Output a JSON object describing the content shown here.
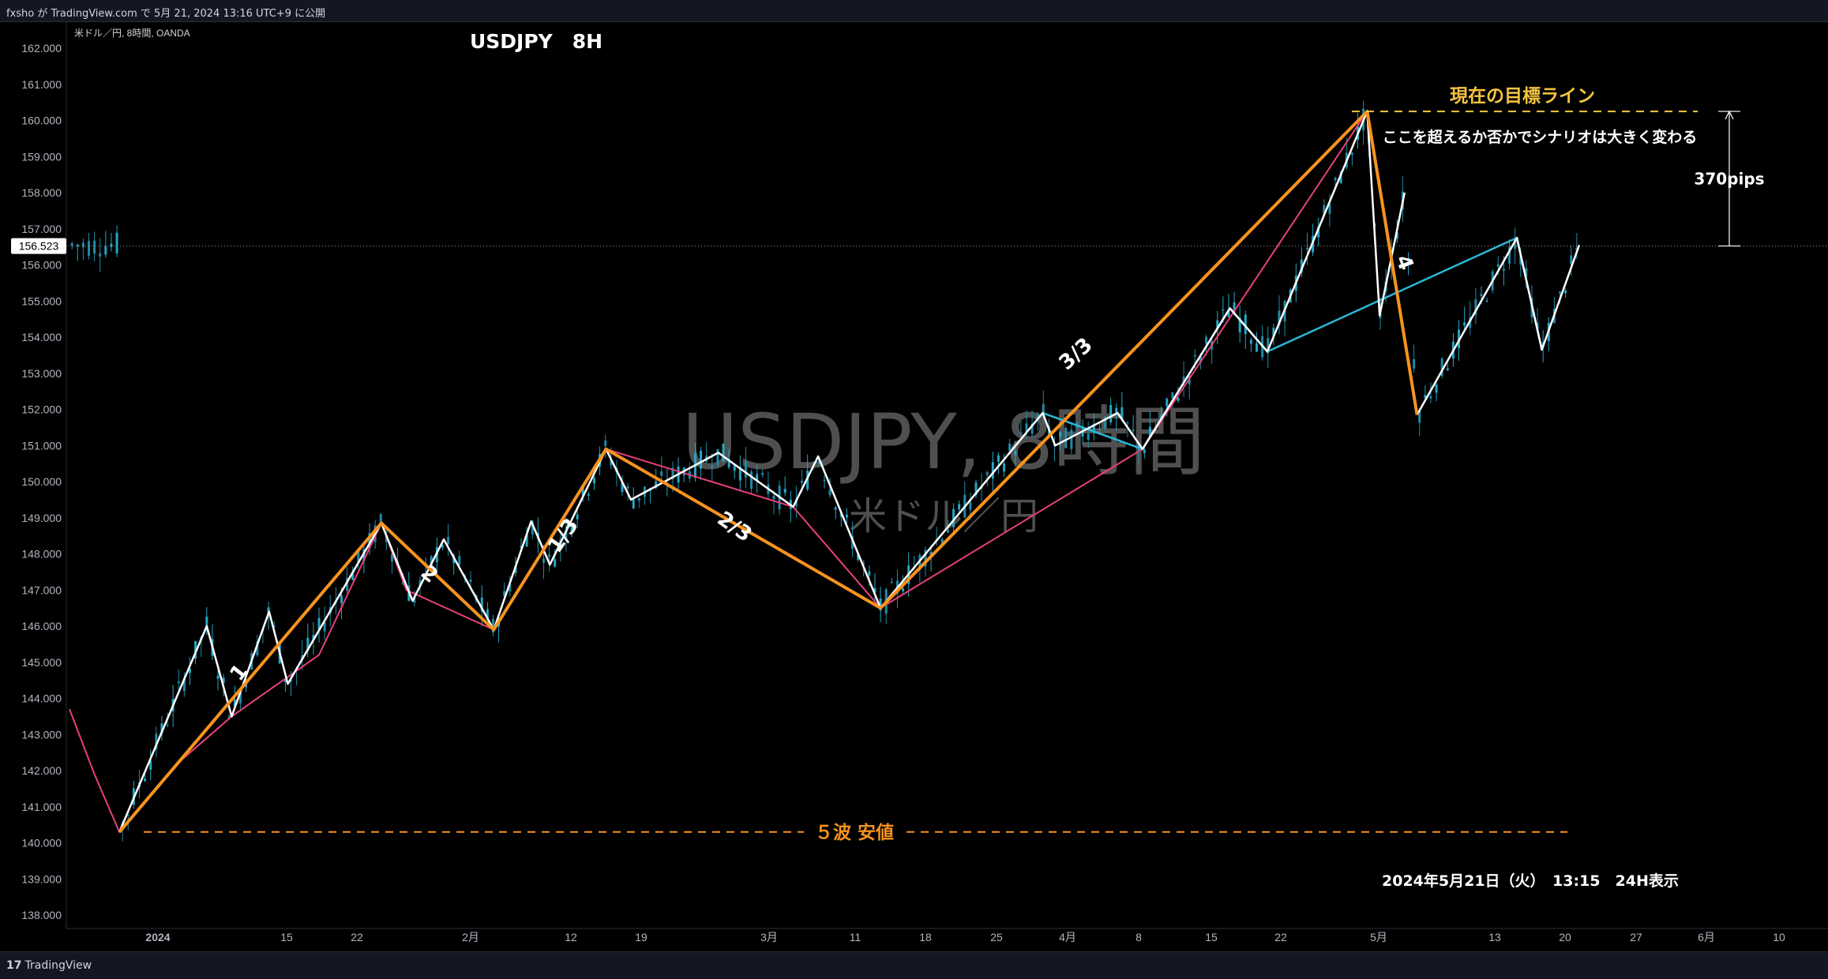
{
  "header": {
    "published": "fxsho が TradingView.com で 5月 21, 2024 13:16 UTC+9 に公開"
  },
  "footer": {
    "logo_mark": "17",
    "logo_text": "TradingView"
  },
  "chart_data": {
    "type": "line",
    "symbol_info": "米ドル／円, 8時間, OANDA",
    "title": "USDJPY　8H",
    "watermark": {
      "main": "USDJPY, 8時間",
      "sub": "米ドル／円"
    },
    "y_ticks": [
      138,
      139,
      140,
      141,
      142,
      143,
      144,
      145,
      146,
      147,
      148,
      149,
      150,
      151,
      152,
      153,
      154,
      155,
      156,
      157,
      158,
      159,
      160,
      161,
      162
    ],
    "ylim": [
      137.7,
      162.3
    ],
    "x_ticks": [
      {
        "label": "2024",
        "bold": true
      },
      {
        "label": "15"
      },
      {
        "label": "22"
      },
      {
        "label": "2月"
      },
      {
        "label": "12"
      },
      {
        "label": "19"
      },
      {
        "label": "3月"
      },
      {
        "label": "11"
      },
      {
        "label": "18"
      },
      {
        "label": "25"
      },
      {
        "label": "4月"
      },
      {
        "label": "8"
      },
      {
        "label": "15"
      },
      {
        "label": "22"
      },
      {
        "label": "5月"
      },
      {
        "label": "13"
      },
      {
        "label": "20"
      },
      {
        "label": "27"
      },
      {
        "label": "6月"
      },
      {
        "label": "10"
      }
    ],
    "current_price": "156.523",
    "current_value": 156.523,
    "colors": {
      "orange": "#f7931e",
      "white": "#ffffff",
      "cyan": "#2ab7d3",
      "pink": "#e8407a",
      "yellow_label": "#f5c542",
      "orange_label": "#f7931e"
    },
    "series": [
      {
        "role": "primary-wave",
        "color": "#f7931e",
        "points": [
          {
            "x": 4,
            "y": 140.3
          },
          {
            "x": 25,
            "y": 148.85
          },
          {
            "x": 34,
            "y": 145.9
          },
          {
            "x": 43,
            "y": 150.9
          },
          {
            "x": 65,
            "y": 146.5
          },
          {
            "x": 104,
            "y": 160.25
          },
          {
            "x": 108,
            "y": 151.85
          }
        ]
      },
      {
        "role": "white-subwaves",
        "color": "#ffffff",
        "points": [
          {
            "x": 4,
            "y": 140.3
          },
          {
            "x": 11,
            "y": 146.0
          },
          {
            "x": 13,
            "y": 143.5
          },
          {
            "x": 16,
            "y": 146.4
          },
          {
            "x": 17.5,
            "y": 144.4
          },
          {
            "x": 25,
            "y": 148.85
          },
          {
            "x": 27.5,
            "y": 146.7
          },
          {
            "x": 30,
            "y": 148.4
          },
          {
            "x": 34,
            "y": 145.9
          },
          {
            "x": 37,
            "y": 148.9
          },
          {
            "x": 38.5,
            "y": 147.7
          },
          {
            "x": 43,
            "y": 150.9
          },
          {
            "x": 45,
            "y": 149.5
          },
          {
            "x": 52,
            "y": 150.8
          },
          {
            "x": 58,
            "y": 149.3
          },
          {
            "x": 60,
            "y": 150.7
          },
          {
            "x": 65,
            "y": 146.5
          },
          {
            "x": 78,
            "y": 151.9
          },
          {
            "x": 79,
            "y": 151.0
          },
          {
            "x": 84,
            "y": 151.9
          },
          {
            "x": 86,
            "y": 150.9
          },
          {
            "x": 93,
            "y": 154.8
          },
          {
            "x": 96,
            "y": 153.6
          },
          {
            "x": 104,
            "y": 160.25
          },
          {
            "x": 105,
            "y": 154.6
          },
          {
            "x": 107,
            "y": 158.0
          }
        ]
      },
      {
        "role": "white-recovery",
        "color": "#ffffff",
        "points": [
          {
            "x": 108,
            "y": 151.85
          },
          {
            "x": 116,
            "y": 156.75
          },
          {
            "x": 118,
            "y": 153.65
          },
          {
            "x": 121,
            "y": 156.55
          }
        ]
      },
      {
        "role": "cyan-subwaves",
        "color": "#2ab7d3",
        "points": [
          {
            "x": 78,
            "y": 151.9
          },
          {
            "x": 86,
            "y": 150.9
          },
          {
            "x": 93,
            "y": 154.8
          },
          {
            "x": 96,
            "y": 153.6
          },
          {
            "x": 116,
            "y": 156.75
          },
          {
            "x": 118,
            "y": 153.65
          }
        ]
      },
      {
        "role": "pink-corrections",
        "color": "#e8407a",
        "points": [
          {
            "x": 0,
            "y": 143.7
          },
          {
            "x": 2,
            "y": 141.9
          },
          {
            "x": 4,
            "y": 140.3
          },
          {
            "x": 9,
            "y": 142.3
          },
          {
            "x": 13,
            "y": 143.5
          },
          {
            "x": 20,
            "y": 145.2
          },
          {
            "x": 25,
            "y": 148.85
          },
          {
            "x": 27,
            "y": 147.0
          },
          {
            "x": 34,
            "y": 145.9
          },
          {
            "x": 43,
            "y": 150.9
          },
          {
            "x": 58,
            "y": 149.3
          },
          {
            "x": 65,
            "y": 146.5
          },
          {
            "x": 86,
            "y": 150.9
          },
          {
            "x": 104,
            "y": 160.25
          },
          {
            "x": 108,
            "y": 151.85
          }
        ]
      }
    ],
    "wave_labels": [
      {
        "text": "1",
        "x": 14,
        "y": 144.6
      },
      {
        "text": "2",
        "x": 28.5,
        "y": 147.3
      },
      {
        "text": "1/3",
        "x": 40,
        "y": 148.4
      },
      {
        "text": "2/3",
        "x": 53,
        "y": 148.6
      },
      {
        "text": "3/3",
        "x": 81,
        "y": 153.4
      },
      {
        "text": "4",
        "x": 106.5,
        "y": 156.0
      }
    ],
    "annotations": {
      "target_line_label": "現在の目標ライン",
      "scenario_note": "ここを超えるか否かでシナリオは大きく変わる",
      "distance_label": "370pips",
      "low_line_label": "５波 安値",
      "datetime_label": "2024年5月21日（火）　13:15　24H表示",
      "target_value": 160.25,
      "low_value": 140.3
    }
  }
}
